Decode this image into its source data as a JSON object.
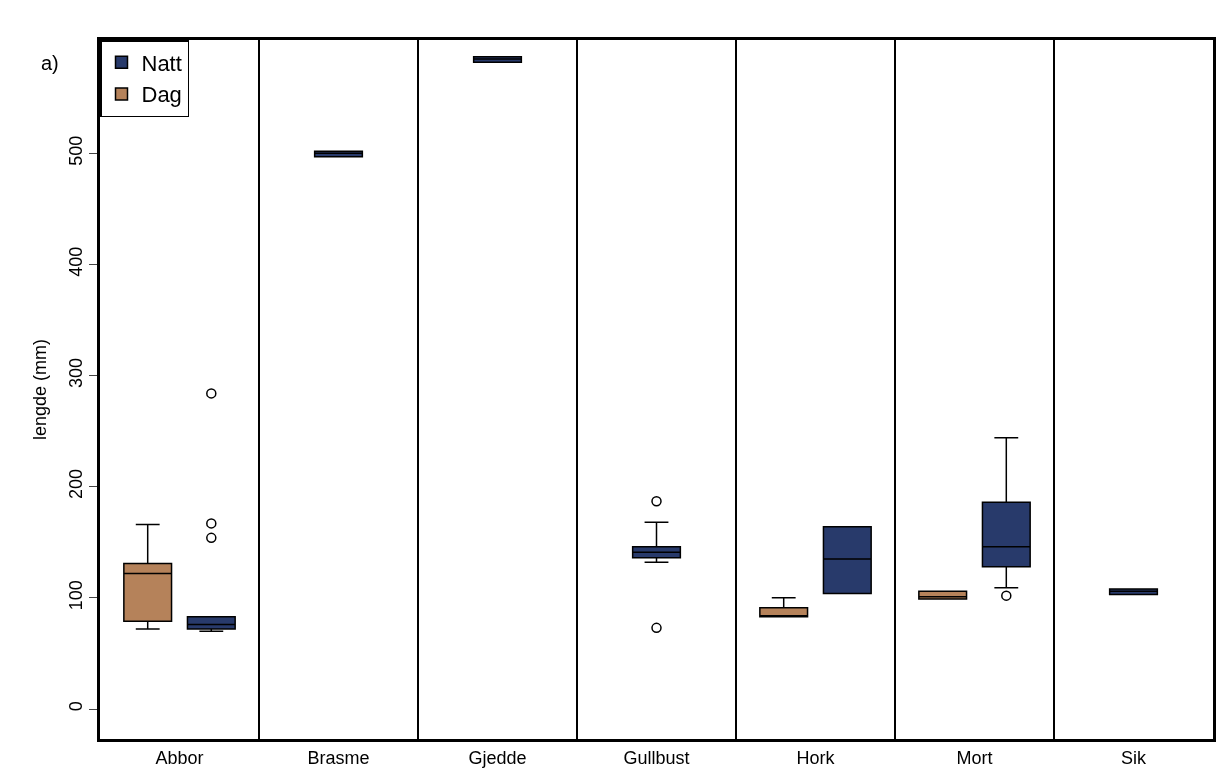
{
  "chart_data": {
    "type": "box",
    "ylabel": "lengde (mm)",
    "annotations": [
      "a)"
    ],
    "categories": [
      "Abbor",
      "Brasme",
      "Gjedde",
      "Gullbust",
      "Hork",
      "Mort",
      "Sik"
    ],
    "ylim": [
      -27,
      602
    ],
    "yticks": [
      0,
      100,
      200,
      300,
      400,
      500
    ],
    "grid": "x",
    "legend": "top left",
    "series": [
      {
        "name": "Natt",
        "color": "#283a6b",
        "boxes": [
          {
            "low": 70,
            "q1": 72,
            "median": 76,
            "q3": 83,
            "high": 83,
            "outliers": [
              284,
              167,
              154
            ]
          },
          {
            "low": 497,
            "q1": 497,
            "median": 500,
            "q3": 502,
            "high": 502
          },
          {
            "low": 582,
            "q1": 582,
            "median": 585,
            "q3": 587,
            "high": 587
          },
          {
            "low": 132,
            "q1": 136,
            "median": 141,
            "q3": 146,
            "high": 168,
            "outliers": [
              187,
              73
            ]
          },
          {
            "low": 104,
            "q1": 104,
            "median": 135,
            "q3": 164,
            "high": 164
          },
          {
            "low": 109,
            "q1": 128,
            "median": 146,
            "q3": 186,
            "high": 244,
            "outliers": [
              102
            ]
          },
          {
            "low": 103,
            "q1": 103,
            "median": 106,
            "q3": 108,
            "high": 108
          }
        ]
      },
      {
        "name": "Dag",
        "color": "#b5825a",
        "boxes": [
          {
            "low": 72,
            "q1": 79,
            "median": 122,
            "q3": 131,
            "high": 166
          },
          null,
          null,
          null,
          {
            "low": 83,
            "q1": 83,
            "median": 84,
            "q3": 91,
            "high": 100
          },
          {
            "low": 99,
            "q1": 99,
            "median": 101,
            "q3": 106,
            "high": 106
          },
          null
        ]
      }
    ]
  }
}
